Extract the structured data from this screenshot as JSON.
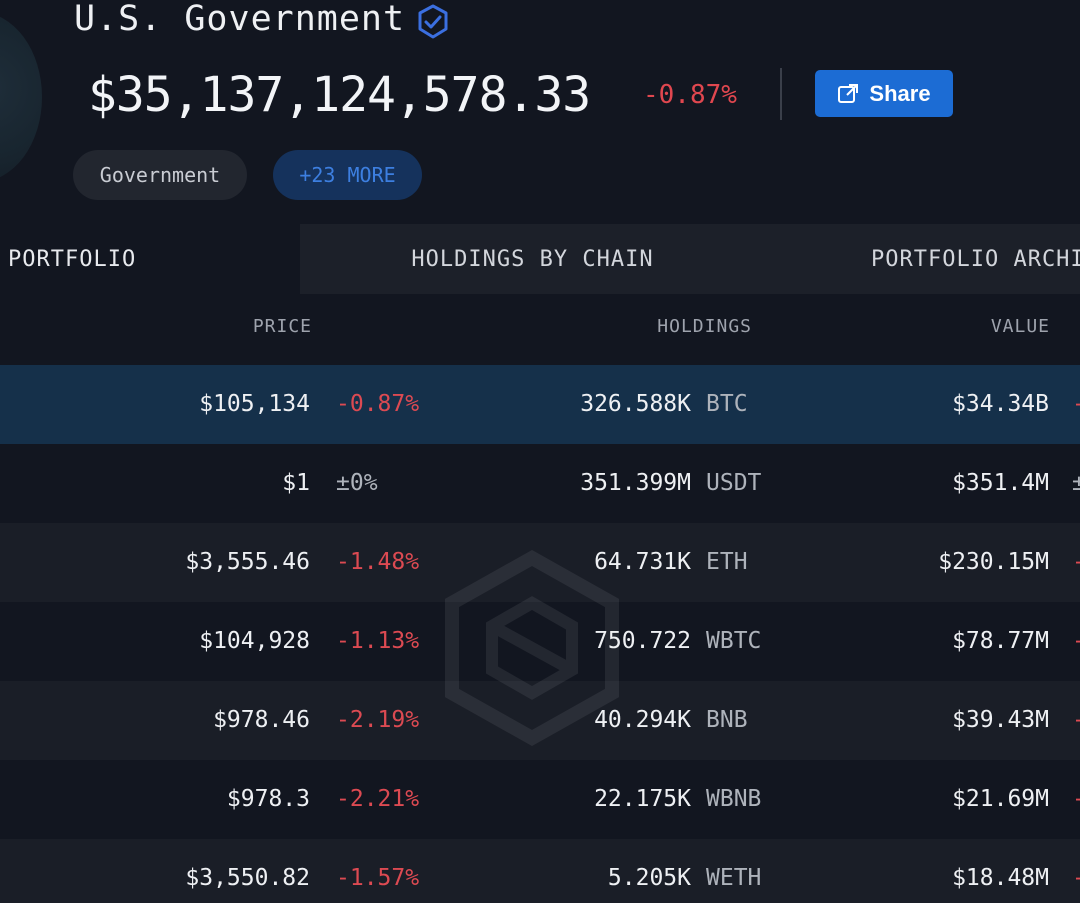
{
  "entity": {
    "name": "U.S. Government",
    "verified_icon": "verified-badge-icon",
    "total_value": "$35,137,124,578.33",
    "total_change": "-0.87%"
  },
  "share": {
    "label": "Share",
    "icon": "share-icon"
  },
  "tags": [
    {
      "label": "Government"
    },
    {
      "label": "+23 MORE"
    }
  ],
  "tabs": [
    {
      "label": "PORTFOLIO",
      "active": true
    },
    {
      "label": "HOLDINGS BY CHAIN",
      "active": false
    },
    {
      "label": "PORTFOLIO ARCHI",
      "active": false
    }
  ],
  "table": {
    "headers": {
      "price": "PRICE",
      "holdings": "HOLDINGS",
      "value": "VALUE"
    },
    "rows": [
      {
        "price": "$105,134",
        "price_change": "-0.87%",
        "amount": "326.588K",
        "symbol": "BTC",
        "value": "$34.34B",
        "value_change": "-"
      },
      {
        "price": "$1",
        "price_change": "±0%",
        "amount": "351.399M",
        "symbol": "USDT",
        "value": "$351.4M",
        "value_change": "±"
      },
      {
        "price": "$3,555.46",
        "price_change": "-1.48%",
        "amount": "64.731K",
        "symbol": "ETH",
        "value": "$230.15M",
        "value_change": "-"
      },
      {
        "price": "$104,928",
        "price_change": "-1.13%",
        "amount": "750.722",
        "symbol": "WBTC",
        "value": "$78.77M",
        "value_change": "-"
      },
      {
        "price": "$978.46",
        "price_change": "-2.19%",
        "amount": "40.294K",
        "symbol": "BNB",
        "value": "$39.43M",
        "value_change": "-"
      },
      {
        "price": "$978.3",
        "price_change": "-2.21%",
        "amount": "22.175K",
        "symbol": "WBNB",
        "value": "$21.69M",
        "value_change": "-"
      },
      {
        "price": "$3,550.82",
        "price_change": "-1.57%",
        "amount": "5.205K",
        "symbol": "WETH",
        "value": "$18.48M",
        "value_change": "-"
      }
    ]
  },
  "colors": {
    "negative": "#dc4a52",
    "accent": "#1c6cd4",
    "selected_row": "#15304a"
  }
}
